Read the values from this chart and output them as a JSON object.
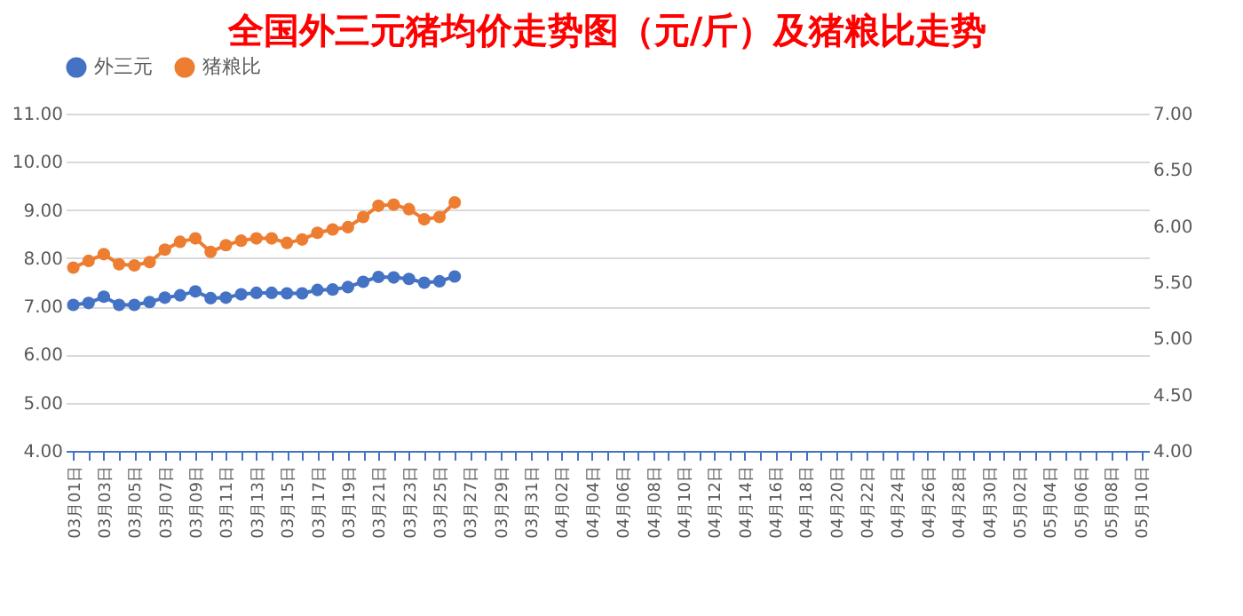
{
  "chart_data": {
    "type": "line",
    "title": "全国外三元猪均价走势图（元/斤）及猪粮比走势",
    "categories": [
      "03月01日",
      null,
      "03月03日",
      null,
      "03月05日",
      null,
      "03月07日",
      null,
      "03月09日",
      null,
      "03月11日",
      null,
      "03月13日",
      null,
      "03月15日",
      null,
      "03月17日",
      null,
      "03月19日",
      null,
      "03月21日",
      null,
      "03月23日",
      null,
      "03月25日",
      null,
      "03月27日",
      null,
      "03月29日",
      null,
      "03月31日",
      null,
      "04月02日",
      null,
      "04月04日",
      null,
      "04月06日",
      null,
      "04月08日",
      null,
      "04月10日",
      null,
      "04月12日",
      null,
      "04月14日",
      null,
      "04月16日",
      null,
      "04月18日",
      null,
      "04月20日",
      null,
      "04月22日",
      null,
      "04月24日",
      null,
      "04月26日",
      null,
      "04月28日",
      null,
      "04月30日",
      null,
      "05月02日",
      null,
      "05月04日",
      null,
      "05月06日",
      null,
      "05月08日",
      null,
      "05月10日"
    ],
    "series": [
      {
        "name": "外三元",
        "color": "#4472c4",
        "values": [
          7.03,
          7.07,
          7.2,
          7.03,
          7.03,
          7.09,
          7.18,
          7.23,
          7.31,
          7.17,
          7.18,
          7.25,
          7.28,
          7.28,
          7.27,
          7.27,
          7.34,
          7.35,
          7.4,
          7.51,
          7.61,
          7.6,
          7.57,
          7.49,
          7.52,
          7.62,
          null,
          null,
          null,
          null,
          null,
          null,
          null,
          null,
          null,
          null,
          null,
          null,
          null,
          null,
          null,
          null,
          null,
          null,
          null,
          null,
          null,
          null,
          null,
          null,
          null,
          null,
          null,
          null,
          null,
          null,
          null,
          null,
          null,
          null,
          null,
          null,
          null,
          null,
          null,
          null,
          null,
          null,
          null,
          null,
          null
        ]
      },
      {
        "name": "猪粮比",
        "color": "#ed7d31",
        "axis": "y2",
        "values": [
          5.63,
          5.69,
          5.75,
          5.66,
          5.65,
          5.68,
          5.79,
          5.86,
          5.89,
          5.77,
          5.83,
          5.87,
          5.89,
          5.89,
          5.85,
          5.88,
          5.94,
          5.97,
          5.99,
          6.08,
          6.18,
          6.19,
          6.15,
          6.06,
          6.08,
          6.21,
          null,
          null,
          null,
          null,
          null,
          null,
          null,
          null,
          null,
          null,
          null,
          null,
          null,
          null,
          null,
          null,
          null,
          null,
          null,
          null,
          null,
          null,
          null,
          null,
          null,
          null,
          null,
          null,
          null,
          null,
          null,
          null,
          null,
          null,
          null,
          null,
          null,
          null,
          null,
          null,
          null,
          null,
          null,
          null,
          null
        ]
      }
    ],
    "ylim": [
      4,
      11
    ],
    "yticks": [
      {
        "value": 4,
        "label": "4.00"
      },
      {
        "value": 5,
        "label": "5.00"
      },
      {
        "value": 6,
        "label": "6.00"
      },
      {
        "value": 7,
        "label": "7.00"
      },
      {
        "value": 8,
        "label": "8.00"
      },
      {
        "value": 9,
        "label": "9.00"
      },
      {
        "value": 10,
        "label": "10.00"
      },
      {
        "value": 11,
        "label": "11.00"
      }
    ],
    "y2lim": [
      4,
      7
    ],
    "y2ticks": [
      {
        "value": 4,
        "label": "4.00"
      },
      {
        "value": 4.5,
        "label": "4.50"
      },
      {
        "value": 5,
        "label": "5.00"
      },
      {
        "value": 5.5,
        "label": "5.50"
      },
      {
        "value": 6,
        "label": "6.00"
      },
      {
        "value": 6.5,
        "label": "6.50"
      },
      {
        "value": 7,
        "label": "7.00"
      }
    ],
    "grid": "y",
    "legend": "top",
    "marker": "circle",
    "line_style": "solid"
  }
}
